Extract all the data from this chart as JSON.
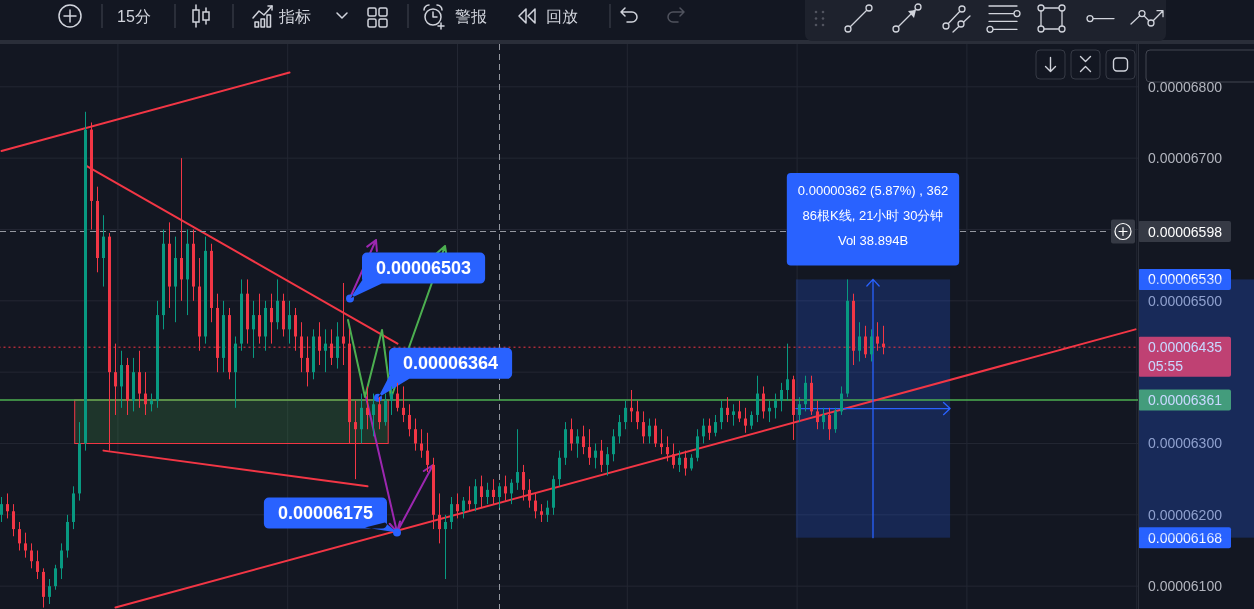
{
  "chart_data": {
    "type": "candlestick",
    "categories": [
      null,
      null,
      null,
      null,
      null,
      null,
      null,
      null,
      null,
      null,
      null,
      null,
      null,
      null,
      null,
      null,
      null,
      null,
      null,
      null,
      null,
      null,
      null,
      null,
      null,
      null,
      null,
      null,
      null,
      null,
      null,
      null,
      null,
      null,
      null,
      null,
      null,
      null,
      null,
      null,
      null,
      null,
      null,
      null,
      null,
      null,
      null,
      null,
      null,
      null,
      null,
      null,
      null,
      null,
      null,
      null,
      null,
      null,
      null,
      null,
      null,
      null,
      null,
      null,
      null,
      null,
      null,
      null,
      null,
      null,
      null,
      null,
      null,
      null,
      null,
      null,
      null,
      null,
      null,
      null,
      null,
      null,
      null,
      null,
      null,
      null,
      null,
      null,
      null,
      null,
      null,
      null,
      null,
      null,
      null,
      null,
      null,
      null,
      null,
      null,
      null,
      null,
      null,
      null,
      null,
      null,
      null,
      null,
      null,
      null,
      null,
      null,
      null,
      null,
      null,
      null,
      null,
      null,
      null,
      null,
      null,
      null,
      null,
      null,
      null,
      null,
      null,
      null,
      null,
      null,
      null,
      null,
      null,
      null,
      null,
      null,
      null,
      null,
      null,
      null,
      null,
      null,
      null,
      null,
      null,
      null,
      null,
      null,
      null,
      null,
      null,
      null,
      null,
      null,
      null,
      null,
      null,
      null,
      null,
      null,
      null,
      null,
      null,
      null,
      null,
      null,
      null,
      null,
      null,
      null,
      null,
      null,
      null,
      null,
      null,
      null,
      null,
      null,
      null,
      null,
      null,
      null,
      null,
      null,
      null,
      null,
      null,
      null,
      null,
      null
    ],
    "ohlc": [
      [
        6.2e-05,
        6.225e-05,
        6.19e-05,
        6.215e-05
      ],
      [
        6.215e-05,
        6.23e-05,
        6.195e-05,
        6.205e-05
      ],
      [
        6.205e-05,
        6.215e-05,
        6.17e-05,
        6.18e-05
      ],
      [
        6.18e-05,
        6.19e-05,
        6.15e-05,
        6.16e-05
      ],
      [
        6.16e-05,
        6.175e-05,
        6.14e-05,
        6.15e-05
      ],
      [
        6.15e-05,
        6.16e-05,
        6.125e-05,
        6.135e-05
      ],
      [
        6.135e-05,
        6.15e-05,
        6.11e-05,
        6.12e-05
      ],
      [
        6.12e-05,
        6.125e-05,
        6.07e-05,
        6.085e-05
      ],
      [
        6.085e-05,
        6.11e-05,
        6.075e-05,
        6.1e-05
      ],
      [
        6.1e-05,
        6.13e-05,
        6.095e-05,
        6.125e-05
      ],
      [
        6.125e-05,
        6.16e-05,
        6.11e-05,
        6.15e-05
      ],
      [
        6.15e-05,
        6.2e-05,
        6.14e-05,
        6.19e-05
      ],
      [
        6.19e-05,
        6.24e-05,
        6.18e-05,
        6.23e-05
      ],
      [
        6.23e-05,
        6.33e-05,
        6.22e-05,
        6.3e-05
      ],
      [
        6.3e-05,
        6.765e-05,
        6.29e-05,
        6.74e-05
      ],
      [
        6.74e-05,
        6.75e-05,
        6.6e-05,
        6.64e-05
      ],
      [
        6.64e-05,
        6.66e-05,
        6.54e-05,
        6.56e-05
      ],
      [
        6.56e-05,
        6.62e-05,
        6.52e-05,
        6.59e-05
      ],
      [
        6.59e-05,
        6.595e-05,
        6.29e-05,
        6.4e-05
      ],
      [
        6.4e-05,
        6.44e-05,
        6.34e-05,
        6.38e-05
      ],
      [
        6.38e-05,
        6.43e-05,
        6.35e-05,
        6.41e-05
      ],
      [
        6.41e-05,
        6.42e-05,
        6.34e-05,
        6.36e-05
      ],
      [
        6.36e-05,
        6.42e-05,
        6.345e-05,
        6.4e-05
      ],
      [
        6.4e-05,
        6.43e-05,
        6.35e-05,
        6.37e-05
      ],
      [
        6.37e-05,
        6.4e-05,
        6.34e-05,
        6.355e-05
      ],
      [
        6.355e-05,
        6.37e-05,
        6.345e-05,
        6.36e-05
      ],
      [
        6.36e-05,
        6.5e-05,
        6.35e-05,
        6.48e-05
      ],
      [
        6.48e-05,
        6.6e-05,
        6.46e-05,
        6.58e-05
      ],
      [
        6.58e-05,
        6.61e-05,
        6.49e-05,
        6.52e-05
      ],
      [
        6.52e-05,
        6.59e-05,
        6.47e-05,
        6.56e-05
      ],
      [
        6.56e-05,
        6.7e-05,
        6.5e-05,
        6.53e-05
      ],
      [
        6.53e-05,
        6.6e-05,
        6.48e-05,
        6.58e-05
      ],
      [
        6.58e-05,
        6.6e-05,
        6.5e-05,
        6.52e-05
      ],
      [
        6.52e-05,
        6.56e-05,
        6.43e-05,
        6.45e-05
      ],
      [
        6.45e-05,
        6.59e-05,
        6.44e-05,
        6.57e-05
      ],
      [
        6.57e-05,
        6.58e-05,
        6.47e-05,
        6.49e-05
      ],
      [
        6.49e-05,
        6.51e-05,
        6.4e-05,
        6.42e-05
      ],
      [
        6.42e-05,
        6.5e-05,
        6.4e-05,
        6.48e-05
      ],
      [
        6.48e-05,
        6.49e-05,
        6.39e-05,
        6.4e-05
      ],
      [
        6.4e-05,
        6.45e-05,
        6.35e-05,
        6.44e-05
      ],
      [
        6.44e-05,
        6.53e-05,
        6.43e-05,
        6.51e-05
      ],
      [
        6.51e-05,
        6.53e-05,
        6.44e-05,
        6.46e-05
      ],
      [
        6.46e-05,
        6.5e-05,
        6.42e-05,
        6.48e-05
      ],
      [
        6.48e-05,
        6.51e-05,
        6.44e-05,
        6.45e-05
      ],
      [
        6.45e-05,
        6.5e-05,
        6.43e-05,
        6.49e-05
      ],
      [
        6.49e-05,
        6.51e-05,
        6.44e-05,
        6.47e-05
      ],
      [
        6.47e-05,
        6.53e-05,
        6.46e-05,
        6.5e-05
      ],
      [
        6.5e-05,
        6.51e-05,
        6.45e-05,
        6.46e-05
      ],
      [
        6.46e-05,
        6.5e-05,
        6.44e-05,
        6.48e-05
      ],
      [
        6.48e-05,
        6.49e-05,
        6.43e-05,
        6.45e-05
      ],
      [
        6.45e-05,
        6.47e-05,
        6.4e-05,
        6.42e-05
      ],
      [
        6.42e-05,
        6.45e-05,
        6.38e-05,
        6.4e-05
      ],
      [
        6.4e-05,
        6.46e-05,
        6.39e-05,
        6.45e-05
      ],
      [
        6.45e-05,
        6.47e-05,
        6.41e-05,
        6.43e-05
      ],
      [
        6.43e-05,
        6.46e-05,
        6.4e-05,
        6.44e-05
      ],
      [
        6.44e-05,
        6.46e-05,
        6.41e-05,
        6.42e-05
      ],
      [
        6.42e-05,
        6.47e-05,
        6.405e-05,
        6.45e-05
      ],
      [
        6.45e-05,
        6.525e-05,
        6.41e-05,
        6.44e-05
      ],
      [
        6.44e-05,
        6.46e-05,
        6.3e-05,
        6.33e-05
      ],
      [
        6.33e-05,
        6.36e-05,
        6.25e-05,
        6.32e-05
      ],
      [
        6.32e-05,
        6.37e-05,
        6.3e-05,
        6.35e-05
      ],
      [
        6.35e-05,
        6.38e-05,
        6.32e-05,
        6.34e-05
      ],
      [
        6.34e-05,
        6.37e-05,
        6.31e-05,
        6.355e-05
      ],
      [
        6.355e-05,
        6.365e-05,
        6.32e-05,
        6.33e-05
      ],
      [
        6.33e-05,
        6.37e-05,
        6.325e-05,
        6.36e-05
      ],
      [
        6.36e-05,
        6.38e-05,
        6.34e-05,
        6.37e-05
      ],
      [
        6.37e-05,
        6.385e-05,
        6.345e-05,
        6.35e-05
      ],
      [
        6.35e-05,
        6.38e-05,
        6.33e-05,
        6.34e-05
      ],
      [
        6.34e-05,
        6.355e-05,
        6.31e-05,
        6.32e-05
      ],
      [
        6.32e-05,
        6.335e-05,
        6.29e-05,
        6.3e-05
      ],
      [
        6.3e-05,
        6.32e-05,
        6.28e-05,
        6.29e-05
      ],
      [
        6.29e-05,
        6.315e-05,
        6.26e-05,
        6.27e-05
      ],
      [
        6.27e-05,
        6.28e-05,
        6.18e-05,
        6.2e-05
      ],
      [
        6.2e-05,
        6.23e-05,
        6.16e-05,
        6.18e-05
      ],
      [
        6.18e-05,
        6.2e-05,
        6.11e-05,
        6.19e-05
      ],
      [
        6.19e-05,
        6.225e-05,
        6.18e-05,
        6.215e-05
      ],
      [
        6.215e-05,
        6.23e-05,
        6.195e-05,
        6.205e-05
      ],
      [
        6.205e-05,
        6.225e-05,
        6.195e-05,
        6.22e-05
      ],
      [
        6.22e-05,
        6.24e-05,
        6.205e-05,
        6.215e-05
      ],
      [
        6.215e-05,
        6.25e-05,
        6.205e-05,
        6.24e-05
      ],
      [
        6.24e-05,
        6.255e-05,
        6.21e-05,
        6.225e-05
      ],
      [
        6.225e-05,
        6.245e-05,
        6.215e-05,
        6.235e-05
      ],
      [
        6.235e-05,
        6.25e-05,
        6.215e-05,
        6.225e-05
      ],
      [
        6.225e-05,
        6.245e-05,
        6.21e-05,
        6.24e-05
      ],
      [
        6.24e-05,
        6.255e-05,
        6.22e-05,
        6.23e-05
      ],
      [
        6.23e-05,
        6.25e-05,
        6.215e-05,
        6.245e-05
      ],
      [
        6.245e-05,
        6.32e-05,
        6.235e-05,
        6.26e-05
      ],
      [
        6.26e-05,
        6.27e-05,
        6.22e-05,
        6.235e-05
      ],
      [
        6.235e-05,
        6.25e-05,
        6.21e-05,
        6.22e-05
      ],
      [
        6.22e-05,
        6.23e-05,
        6.195e-05,
        6.205e-05
      ],
      [
        6.205e-05,
        6.215e-05,
        6.19e-05,
        6.2e-05
      ],
      [
        6.2e-05,
        6.22e-05,
        6.19e-05,
        6.21e-05
      ],
      [
        6.21e-05,
        6.255e-05,
        6.2e-05,
        6.25e-05
      ],
      [
        6.25e-05,
        6.29e-05,
        6.24e-05,
        6.28e-05
      ],
      [
        6.28e-05,
        6.33e-05,
        6.27e-05,
        6.32e-05
      ],
      [
        6.32e-05,
        6.335e-05,
        6.29e-05,
        6.3e-05
      ],
      [
        6.3e-05,
        6.32e-05,
        6.28e-05,
        6.31e-05
      ],
      [
        6.31e-05,
        6.325e-05,
        6.285e-05,
        6.295e-05
      ],
      [
        6.295e-05,
        6.32e-05,
        6.27e-05,
        6.28e-05
      ],
      [
        6.28e-05,
        6.3e-05,
        6.265e-05,
        6.29e-05
      ],
      [
        6.29e-05,
        6.305e-05,
        6.26e-05,
        6.27e-05
      ],
      [
        6.27e-05,
        6.295e-05,
        6.255e-05,
        6.285e-05
      ],
      [
        6.285e-05,
        6.32e-05,
        6.275e-05,
        6.31e-05
      ],
      [
        6.31e-05,
        6.34e-05,
        6.3e-05,
        6.33e-05
      ],
      [
        6.33e-05,
        6.36e-05,
        6.32e-05,
        6.35e-05
      ],
      [
        6.35e-05,
        6.375e-05,
        6.33e-05,
        6.345e-05
      ],
      [
        6.345e-05,
        6.36e-05,
        6.32e-05,
        6.33e-05
      ],
      [
        6.33e-05,
        6.345e-05,
        6.3e-05,
        6.31e-05
      ],
      [
        6.31e-05,
        6.335e-05,
        6.3e-05,
        6.325e-05
      ],
      [
        6.325e-05,
        6.335e-05,
        6.295e-05,
        6.3e-05
      ],
      [
        6.3e-05,
        6.32e-05,
        6.285e-05,
        6.295e-05
      ],
      [
        6.295e-05,
        6.31e-05,
        6.275e-05,
        6.285e-05
      ],
      [
        6.285e-05,
        6.3e-05,
        6.265e-05,
        6.27e-05
      ],
      [
        6.27e-05,
        6.29e-05,
        6.26e-05,
        6.28e-05
      ],
      [
        6.28e-05,
        6.29e-05,
        6.255e-05,
        6.265e-05
      ],
      [
        6.265e-05,
        6.285e-05,
        6.262e-05,
        6.28e-05
      ],
      [
        6.28e-05,
        6.32e-05,
        6.275e-05,
        6.31e-05
      ],
      [
        6.31e-05,
        6.335e-05,
        6.3e-05,
        6.325e-05
      ],
      [
        6.325e-05,
        6.335e-05,
        6.305e-05,
        6.315e-05
      ],
      [
        6.315e-05,
        6.34e-05,
        6.31e-05,
        6.33e-05
      ],
      [
        6.33e-05,
        6.36e-05,
        6.32e-05,
        6.35e-05
      ],
      [
        6.35e-05,
        6.365e-05,
        6.33e-05,
        6.34e-05
      ],
      [
        6.34e-05,
        6.355e-05,
        6.325e-05,
        6.345e-05
      ],
      [
        6.345e-05,
        6.36e-05,
        6.33e-05,
        6.335e-05
      ],
      [
        6.335e-05,
        6.35e-05,
        6.315e-05,
        6.325e-05
      ],
      [
        6.325e-05,
        6.345e-05,
        6.32e-05,
        6.34e-05
      ],
      [
        6.34e-05,
        6.395e-05,
        6.33e-05,
        6.37e-05
      ],
      [
        6.37e-05,
        6.38e-05,
        6.335e-05,
        6.345e-05
      ],
      [
        6.345e-05,
        6.36e-05,
        6.33e-05,
        6.35e-05
      ],
      [
        6.35e-05,
        6.37e-05,
        6.335e-05,
        6.36e-05
      ],
      [
        6.36e-05,
        6.385e-05,
        6.345e-05,
        6.375e-05
      ],
      [
        6.375e-05,
        6.44e-05,
        6.36e-05,
        6.39e-05
      ],
      [
        6.39e-05,
        6.395e-05,
        6.305e-05,
        6.34e-05
      ],
      [
        6.34e-05,
        6.365e-05,
        6.33e-05,
        6.355e-05
      ],
      [
        6.355e-05,
        6.395e-05,
        6.345e-05,
        6.385e-05
      ],
      [
        6.385e-05,
        6.395e-05,
        6.34e-05,
        6.345e-05
      ],
      [
        6.345e-05,
        6.36e-05,
        6.32e-05,
        6.33e-05
      ],
      [
        6.33e-05,
        6.35e-05,
        6.32e-05,
        6.34e-05
      ],
      [
        6.34e-05,
        6.35e-05,
        6.305e-05,
        6.32e-05
      ],
      [
        6.32e-05,
        6.35e-05,
        6.315e-05,
        6.345e-05
      ],
      [
        6.345e-05,
        6.38e-05,
        6.34e-05,
        6.37e-05
      ],
      [
        6.37e-05,
        6.53e-05,
        6.365e-05,
        6.5e-05
      ],
      [
        6.5e-05,
        6.51e-05,
        6.41e-05,
        6.43e-05
      ],
      [
        6.43e-05,
        6.47e-05,
        6.415e-05,
        6.45e-05
      ],
      [
        6.45e-05,
        6.465e-05,
        6.42e-05,
        6.425e-05
      ],
      [
        6.425e-05,
        6.46e-05,
        6.415e-05,
        6.45e-05
      ],
      [
        6.45e-05,
        6.47e-05,
        6.43e-05,
        6.44e-05
      ],
      [
        6.44e-05,
        6.465e-05,
        6.425e-05,
        6.435e-05
      ],
      null,
      null,
      null,
      null,
      null,
      null,
      null,
      null,
      null,
      null,
      null,
      null,
      null,
      null,
      null,
      null,
      null,
      null,
      null,
      null,
      null,
      null,
      null,
      null,
      null,
      null,
      null,
      null,
      null,
      null,
      null,
      null,
      null,
      null,
      null,
      null,
      null,
      null,
      null,
      null,
      null,
      null
    ],
    "series": [
      {
        "type": "line",
        "color": "#f23645",
        "values": [
          6.71e-05,
          null,
          null,
          null,
          null,
          null,
          null,
          null,
          null,
          null,
          null,
          null,
          null,
          null,
          null,
          null,
          null,
          null,
          null,
          null,
          null,
          null,
          null,
          null,
          null,
          null,
          null,
          null,
          null,
          null,
          null,
          null,
          null,
          null,
          null,
          null,
          null,
          null,
          null,
          null,
          null,
          null,
          null,
          null,
          null,
          null,
          null,
          null,
          6.82e-05,
          null,
          null,
          null,
          null,
          null,
          null,
          null,
          null,
          null,
          null,
          null,
          null,
          null,
          null,
          null,
          null,
          null,
          null,
          null,
          null,
          null,
          null,
          null,
          null,
          null,
          null,
          null,
          null,
          null,
          null,
          null,
          null,
          null,
          null,
          null,
          null,
          null,
          null,
          null,
          null,
          null,
          null,
          null,
          null,
          null,
          null,
          null,
          null,
          null,
          null,
          null,
          null,
          null,
          null,
          null,
          null,
          null,
          null,
          null,
          null,
          null,
          null,
          null,
          null,
          null,
          null,
          null,
          null,
          null,
          null,
          null,
          null,
          null,
          null,
          null,
          null,
          null,
          null,
          null,
          null,
          null,
          null,
          null,
          null,
          null,
          null,
          null,
          null,
          null,
          null,
          null,
          null,
          null,
          null,
          null,
          null,
          null,
          null,
          null,
          null,
          null,
          null,
          null,
          null,
          null,
          null,
          null,
          null,
          null,
          null,
          null,
          null,
          null,
          null,
          null,
          null,
          null,
          null,
          null,
          null,
          null,
          null,
          null,
          null,
          null,
          null,
          null,
          null,
          null,
          null,
          null,
          null,
          null,
          null,
          null,
          null,
          null,
          null,
          null,
          null,
          null
        ]
      },
      {
        "type": "line",
        "color": "#f23645",
        "values": [
          null,
          null,
          null,
          null,
          null,
          null,
          null,
          null,
          null,
          null,
          null,
          null,
          null,
          null,
          6.69e-05,
          null,
          null,
          null,
          null,
          null,
          null,
          null,
          null,
          null,
          null,
          null,
          null,
          null,
          null,
          null,
          null,
          null,
          null,
          null,
          null,
          null,
          null,
          null,
          null,
          null,
          null,
          null,
          null,
          null,
          null,
          null,
          null,
          null,
          null,
          null,
          null,
          null,
          null,
          null,
          null,
          null,
          null,
          null,
          null,
          null,
          null,
          null,
          null,
          null,
          null,
          null,
          6.44e-05,
          null,
          null,
          null,
          null,
          null,
          null,
          null,
          null,
          null,
          null,
          null,
          null,
          null,
          null,
          null,
          null,
          null,
          null,
          null,
          null,
          null,
          null,
          null,
          null,
          null,
          null,
          null,
          null,
          null,
          null,
          null,
          null,
          null,
          null,
          null,
          null,
          null,
          null,
          null,
          null,
          null,
          null,
          null,
          null,
          null,
          null,
          null,
          null,
          null,
          null,
          null,
          null,
          null,
          null,
          null,
          null,
          null,
          null,
          null,
          null,
          null,
          null,
          null,
          null,
          null,
          null,
          null,
          null,
          null,
          null,
          null,
          null,
          null,
          null,
          null,
          null,
          null,
          null,
          null,
          null,
          null,
          null,
          null,
          null,
          null,
          null,
          null,
          null,
          null,
          null,
          null,
          null,
          null,
          null,
          null,
          null,
          null,
          null,
          null,
          null,
          null,
          null,
          null,
          null,
          null,
          null,
          null,
          null,
          null,
          null,
          null,
          null,
          null,
          null,
          null,
          null,
          null,
          null,
          null,
          null,
          null,
          null,
          null
        ]
      },
      {
        "type": "line",
        "color": "#f23645",
        "values": [
          null,
          null,
          null,
          null,
          null,
          null,
          null,
          null,
          null,
          null,
          null,
          null,
          null,
          null,
          null,
          null,
          null,
          6.29e-05,
          null,
          null,
          null,
          null,
          null,
          null,
          null,
          null,
          null,
          null,
          null,
          null,
          null,
          null,
          null,
          null,
          null,
          null,
          null,
          null,
          null,
          null,
          null,
          null,
          null,
          null,
          null,
          null,
          null,
          null,
          null,
          null,
          null,
          null,
          null,
          null,
          null,
          null,
          null,
          null,
          null,
          null,
          null,
          6.24e-05,
          null,
          null,
          null,
          null,
          null,
          null,
          null,
          null,
          null,
          null,
          null,
          null,
          null,
          null,
          null,
          null,
          null,
          null,
          null,
          null,
          null,
          null,
          null,
          null,
          null,
          null,
          null,
          null,
          null,
          null,
          null,
          null,
          null,
          null,
          null,
          null,
          null,
          null,
          null,
          null,
          null,
          null,
          null,
          null,
          null,
          null,
          null,
          null,
          null,
          null,
          null,
          null,
          null,
          null,
          null,
          null,
          null,
          null,
          null,
          null,
          null,
          null,
          null,
          null,
          null,
          null,
          null,
          null,
          null,
          null,
          null,
          null,
          null,
          null,
          null,
          null,
          null,
          null,
          null,
          null,
          null,
          null,
          null,
          null,
          null,
          null,
          null,
          null,
          null,
          null,
          null,
          null,
          null,
          null,
          null,
          null,
          null,
          null,
          null,
          null,
          null,
          null,
          null,
          null,
          null,
          null,
          null,
          null,
          null,
          null,
          null,
          null,
          null,
          null,
          null,
          null,
          null,
          null,
          null,
          null,
          null,
          null,
          null,
          null,
          null,
          null,
          null,
          null
        ]
      },
      {
        "type": "line",
        "color": "#f23645",
        "values": [
          null,
          null,
          null,
          null,
          null,
          null,
          null,
          null,
          null,
          null,
          null,
          null,
          null,
          null,
          null,
          null,
          null,
          null,
          null,
          6.07e-05,
          null,
          null,
          null,
          null,
          null,
          null,
          null,
          null,
          null,
          null,
          null,
          null,
          null,
          null,
          null,
          null,
          null,
          null,
          null,
          null,
          null,
          null,
          null,
          null,
          null,
          null,
          null,
          null,
          null,
          null,
          null,
          null,
          null,
          null,
          null,
          null,
          null,
          null,
          null,
          null,
          null,
          null,
          null,
          null,
          null,
          null,
          null,
          null,
          null,
          null,
          null,
          null,
          null,
          null,
          null,
          null,
          null,
          null,
          null,
          null,
          null,
          null,
          null,
          null,
          null,
          null,
          null,
          null,
          null,
          null,
          null,
          null,
          null,
          null,
          null,
          null,
          null,
          null,
          null,
          null,
          null,
          null,
          null,
          null,
          null,
          null,
          null,
          null,
          null,
          null,
          null,
          null,
          null,
          null,
          null,
          null,
          null,
          null,
          null,
          null,
          null,
          null,
          null,
          null,
          null,
          null,
          null,
          null,
          null,
          null,
          null,
          null,
          null,
          null,
          null,
          null,
          null,
          null,
          null,
          null,
          null,
          null,
          null,
          null,
          null,
          null,
          null,
          null,
          null,
          null,
          null,
          null,
          null,
          null,
          null,
          null,
          null,
          null,
          null,
          null,
          null,
          null,
          null,
          null,
          null,
          null,
          null,
          null,
          null,
          null,
          null,
          null,
          null,
          null,
          null,
          null,
          null,
          null,
          null,
          null,
          null,
          null,
          null,
          null,
          null,
          null,
          null,
          null,
          null,
          6.46e-05
        ]
      }
    ],
    "ylim": [
      6.068e-05,
      6.86e-05
    ],
    "yticks": [
      {
        "value": 6.1e-05,
        "label": "0.00006100"
      },
      {
        "value": 6.2e-05,
        "label": "0.00006200"
      },
      {
        "value": 6.3e-05,
        "label": "0.00006300"
      },
      {
        "value": 6.4e-05,
        "label": null
      },
      {
        "value": 6.5e-05,
        "label": "0.00006500"
      },
      {
        "value": 6.6e-05,
        "label": null
      },
      {
        "value": 6.7e-05,
        "label": "0.00006700"
      },
      {
        "value": 6.8e-05,
        "label": "0.00006800"
      }
    ],
    "tick_labels": "y",
    "grid": true,
    "ref_lines": [
      {
        "axis": "y",
        "value": 6.435e-05,
        "label": "0.00006435",
        "color": "#f23645",
        "line_style": "dotted"
      },
      {
        "axis": "y",
        "value": 6.361e-05,
        "label": "0.00006361",
        "color": "#4caf50",
        "line_style": "solid"
      }
    ],
    "bands": [
      {
        "axis": "y",
        "from": 6.3e-05,
        "to": 6.361e-05,
        "color": "#4caf50"
      },
      {
        "axis": "y",
        "from": 6.168e-05,
        "to": 6.53e-05,
        "color": "#2962ff"
      }
    ],
    "annotations": [
      "15分",
      "指标",
      "警报",
      "回放",
      "0.00006503",
      "0.00006364",
      "0.00006175",
      "0.00000362 (5.87%) , 362",
      "86根K线, 21小时 30分钟",
      "Vol 38.894B",
      "0.00006598",
      "0.00006530",
      "0.00006168",
      "05:55"
    ]
  }
}
